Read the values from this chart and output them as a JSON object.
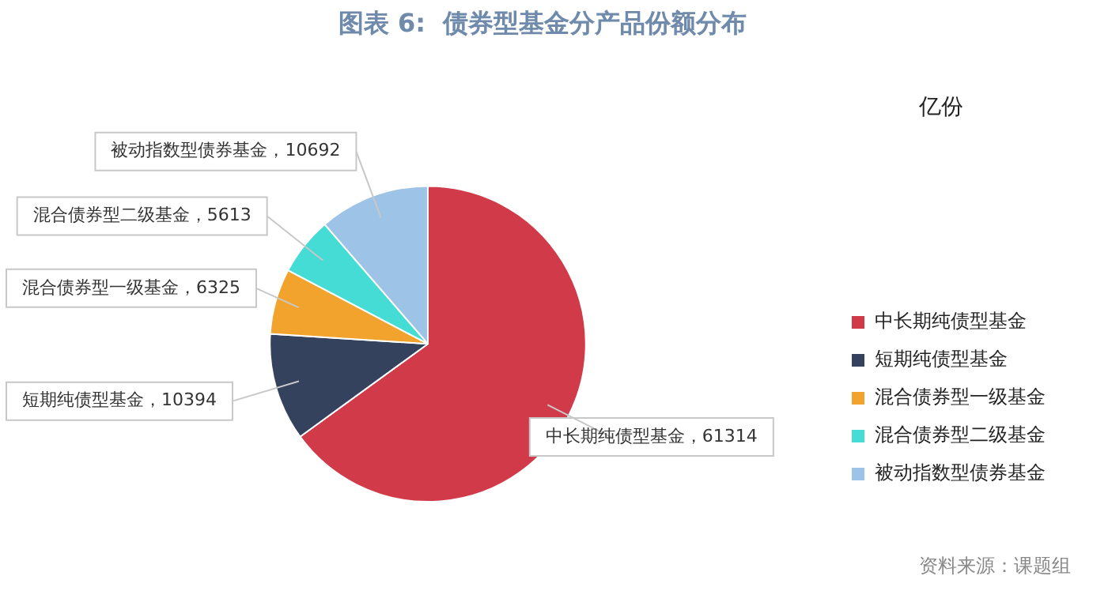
{
  "chart_data": {
    "type": "pie",
    "title": "图表 6:  债券型基金分产品份额分布",
    "categories": [
      "中长期纯债型基金",
      "短期纯债型基金",
      "混合债券型一级基金",
      "混合债券型二级基金",
      "被动指数型债券基金"
    ],
    "values": [
      61314,
      10394,
      6325,
      5613,
      10692
    ],
    "colors": [
      "#d13a48",
      "#35425e",
      "#f2a32e",
      "#45dcd6",
      "#9dc3e6"
    ],
    "value_labels": [
      "中长期纯债型基金，61314",
      "短期纯债型基金，10394",
      "混合债券型一级基金，6325",
      "混合债券型二级基金，5613",
      "被动指数型债券基金，10692"
    ],
    "legend": "bottom right",
    "annotations": [
      "亿份",
      "资料来源：课题组"
    ]
  }
}
